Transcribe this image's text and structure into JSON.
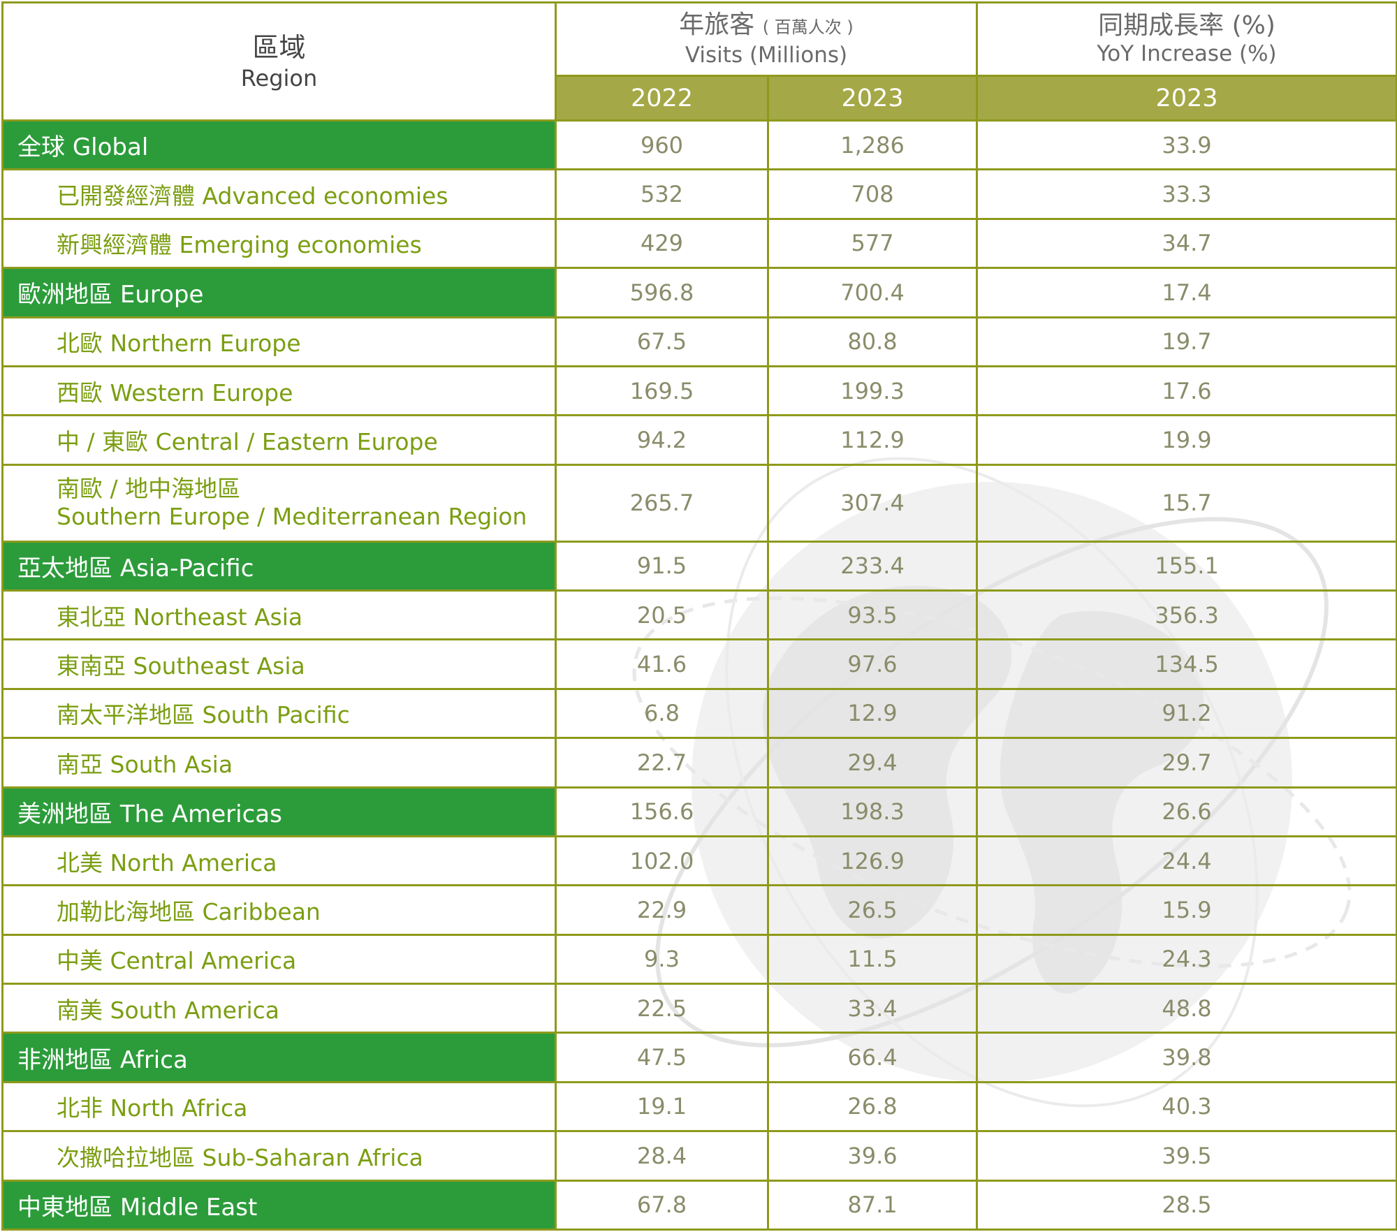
{
  "chart_data": {
    "type": "table",
    "header": {
      "region_zh": "區域",
      "region_en": "Region",
      "visits_zh": "年旅客",
      "visits_zh_unit": "( 百萬人次 )",
      "visits_en": "Visits (Millions)",
      "yoy_zh": "同期成長率 (%)",
      "yoy_en": "YoY Increase (%)",
      "year_2022": "2022",
      "year_2023": "2023",
      "year_yoy": "2023"
    },
    "rows": [
      {
        "level": "main",
        "zh": "全球",
        "en": "Global",
        "v2022": "960",
        "v2023": "1,286",
        "yoy": "33.9"
      },
      {
        "level": "sub",
        "zh": "已開發經濟體",
        "en": "Advanced economies",
        "v2022": "532",
        "v2023": "708",
        "yoy": "33.3"
      },
      {
        "level": "sub",
        "zh": "新興經濟體",
        "en": "Emerging economies",
        "v2022": "429",
        "v2023": "577",
        "yoy": "34.7"
      },
      {
        "level": "main",
        "zh": "歐洲地區",
        "en": "Europe",
        "v2022": "596.8",
        "v2023": "700.4",
        "yoy": "17.4"
      },
      {
        "level": "sub",
        "zh": "北歐",
        "en": "Northern Europe",
        "v2022": "67.5",
        "v2023": "80.8",
        "yoy": "19.7"
      },
      {
        "level": "sub",
        "zh": "西歐",
        "en": "Western Europe",
        "v2022": "169.5",
        "v2023": "199.3",
        "yoy": "17.6"
      },
      {
        "level": "sub",
        "zh": "中 / 東歐",
        "en": "Central / Eastern Europe",
        "v2022": "94.2",
        "v2023": "112.9",
        "yoy": "19.9"
      },
      {
        "level": "sub2",
        "zh": "南歐 / 地中海地區",
        "en": "Southern Europe / Mediterranean Region",
        "v2022": "265.7",
        "v2023": "307.4",
        "yoy": "15.7"
      },
      {
        "level": "main",
        "zh": "亞太地區",
        "en": "Asia-Pacific",
        "v2022": "91.5",
        "v2023": "233.4",
        "yoy": "155.1"
      },
      {
        "level": "sub",
        "zh": "東北亞",
        "en": "Northeast Asia",
        "v2022": "20.5",
        "v2023": "93.5",
        "yoy": "356.3"
      },
      {
        "level": "sub",
        "zh": "東南亞",
        "en": "Southeast Asia",
        "v2022": "41.6",
        "v2023": "97.6",
        "yoy": "134.5"
      },
      {
        "level": "sub",
        "zh": "南太平洋地區",
        "en": "South Pacific",
        "v2022": "6.8",
        "v2023": "12.9",
        "yoy": "91.2"
      },
      {
        "level": "sub",
        "zh": "南亞",
        "en": "South Asia",
        "v2022": "22.7",
        "v2023": "29.4",
        "yoy": "29.7"
      },
      {
        "level": "main",
        "zh": "美洲地區",
        "en": "The Americas",
        "v2022": "156.6",
        "v2023": "198.3",
        "yoy": "26.6"
      },
      {
        "level": "sub",
        "zh": "北美",
        "en": "North America",
        "v2022": "102.0",
        "v2023": "126.9",
        "yoy": "24.4"
      },
      {
        "level": "sub",
        "zh": "加勒比海地區",
        "en": "Caribbean",
        "v2022": "22.9",
        "v2023": "26.5",
        "yoy": "15.9"
      },
      {
        "level": "sub",
        "zh": "中美",
        "en": "Central America",
        "v2022": "9.3",
        "v2023": "11.5",
        "yoy": "24.3"
      },
      {
        "level": "sub",
        "zh": "南美",
        "en": "South America",
        "v2022": "22.5",
        "v2023": "33.4",
        "yoy": "48.8"
      },
      {
        "level": "main",
        "zh": "非洲地區",
        "en": "Africa",
        "v2022": "47.5",
        "v2023": "66.4",
        "yoy": "39.8"
      },
      {
        "level": "sub",
        "zh": "北非",
        "en": "North Africa",
        "v2022": "19.1",
        "v2023": "26.8",
        "yoy": "40.3"
      },
      {
        "level": "sub",
        "zh": "次撒哈拉地區",
        "en": "Sub-Saharan Africa",
        "v2022": "28.4",
        "v2023": "39.6",
        "yoy": "39.5"
      },
      {
        "level": "main",
        "zh": "中東地區",
        "en": "Middle East",
        "v2022": "67.8",
        "v2023": "87.1",
        "yoy": "28.5"
      }
    ]
  },
  "colors": {
    "main_row": "#2c9c3b",
    "year_header": "#a4a846",
    "border": "#8e9a1b",
    "sub_label": "#7b9e11",
    "value_text": "#8a8c6a"
  },
  "decoration": "globe-watermark"
}
